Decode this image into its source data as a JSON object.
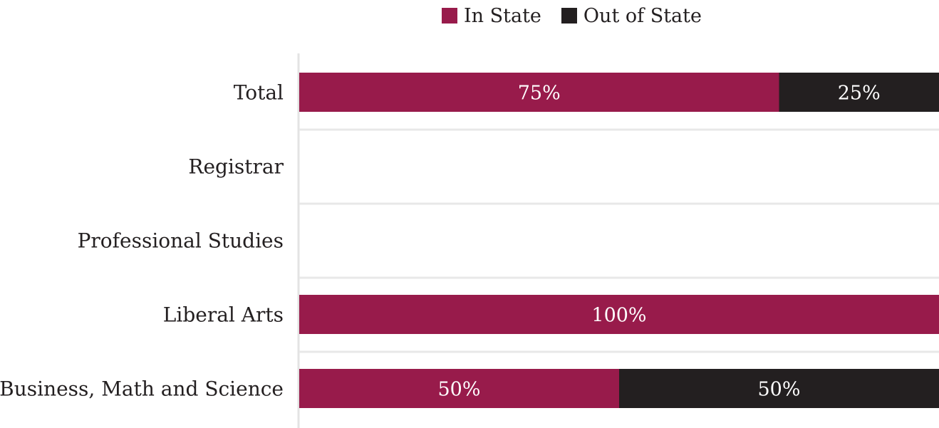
{
  "chart_data": {
    "type": "bar",
    "orientation": "horizontal",
    "stacked": true,
    "categories": [
      "Total",
      "Registrar",
      "Professional Studies",
      "Liberal Arts",
      "Business, Math and Science"
    ],
    "series": [
      {
        "name": "In State",
        "color": "#981b4b",
        "values": [
          75,
          null,
          null,
          100,
          50
        ]
      },
      {
        "name": "Out of State",
        "color": "#231f20",
        "values": [
          25,
          null,
          null,
          null,
          50
        ]
      }
    ],
    "data_labels": [
      [
        "75%",
        "",
        "",
        "100%",
        "50%"
      ],
      [
        "25%",
        "",
        "",
        "",
        "50%"
      ]
    ],
    "xlim": [
      0,
      100
    ],
    "legend_position": "top",
    "grid": true
  }
}
